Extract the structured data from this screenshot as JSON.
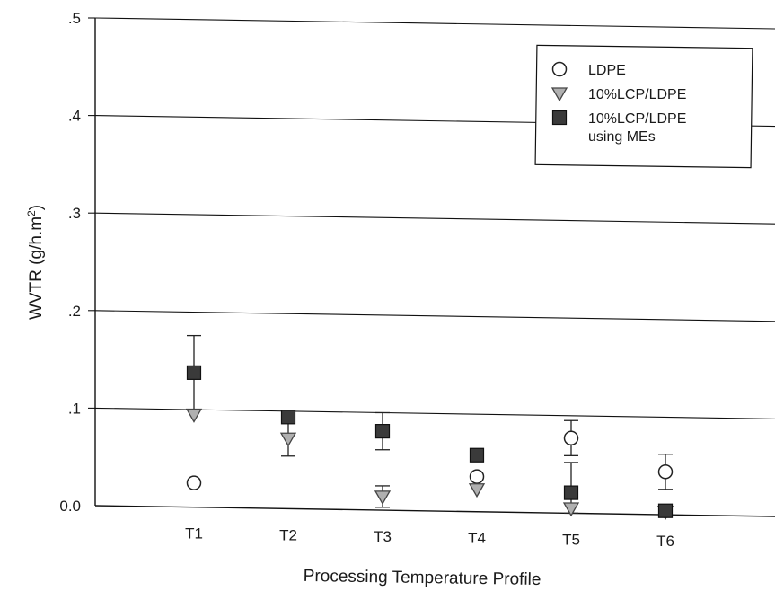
{
  "chart_data": {
    "type": "scatter",
    "title": "",
    "xlabel": "Processing Temperature Profile",
    "ylabel": "WVTR (g/h.m",
    "ylabel_superscript": "2",
    "ylabel_suffix": ")",
    "categories": [
      "T1",
      "T2",
      "T3",
      "T4",
      "T5",
      "T6"
    ],
    "ylim": [
      0,
      0.5
    ],
    "yticks": [
      ".5",
      ".4",
      ".3",
      ".2",
      ".1",
      "0.0"
    ],
    "grid": true,
    "legend_position": "top-right",
    "series": [
      {
        "name": "LDPE",
        "marker": "circle-open",
        "values": [
          0.025,
          null,
          null,
          0.036,
          0.077,
          0.044
        ],
        "errors": [
          null,
          null,
          null,
          null,
          0.018,
          0.018
        ],
        "color": "#ffffff"
      },
      {
        "name": "10%LCP/LDPE",
        "marker": "triangle-down",
        "values": [
          0.095,
          0.072,
          0.014,
          0.023,
          0.005,
          0.003
        ],
        "errors": [
          null,
          0.018,
          0.011,
          null,
          null,
          null
        ],
        "color": "#b0b0b0"
      },
      {
        "name": "10%LCP/LDPE using MEs",
        "legend_lines": [
          "10%LCP/LDPE",
          "using MEs"
        ],
        "marker": "square",
        "values": [
          0.138,
          0.094,
          0.081,
          0.058,
          0.021,
          0.004
        ],
        "errors": [
          0.038,
          null,
          0.019,
          null,
          0.031,
          null
        ],
        "color": "#3a3a3a"
      }
    ]
  }
}
